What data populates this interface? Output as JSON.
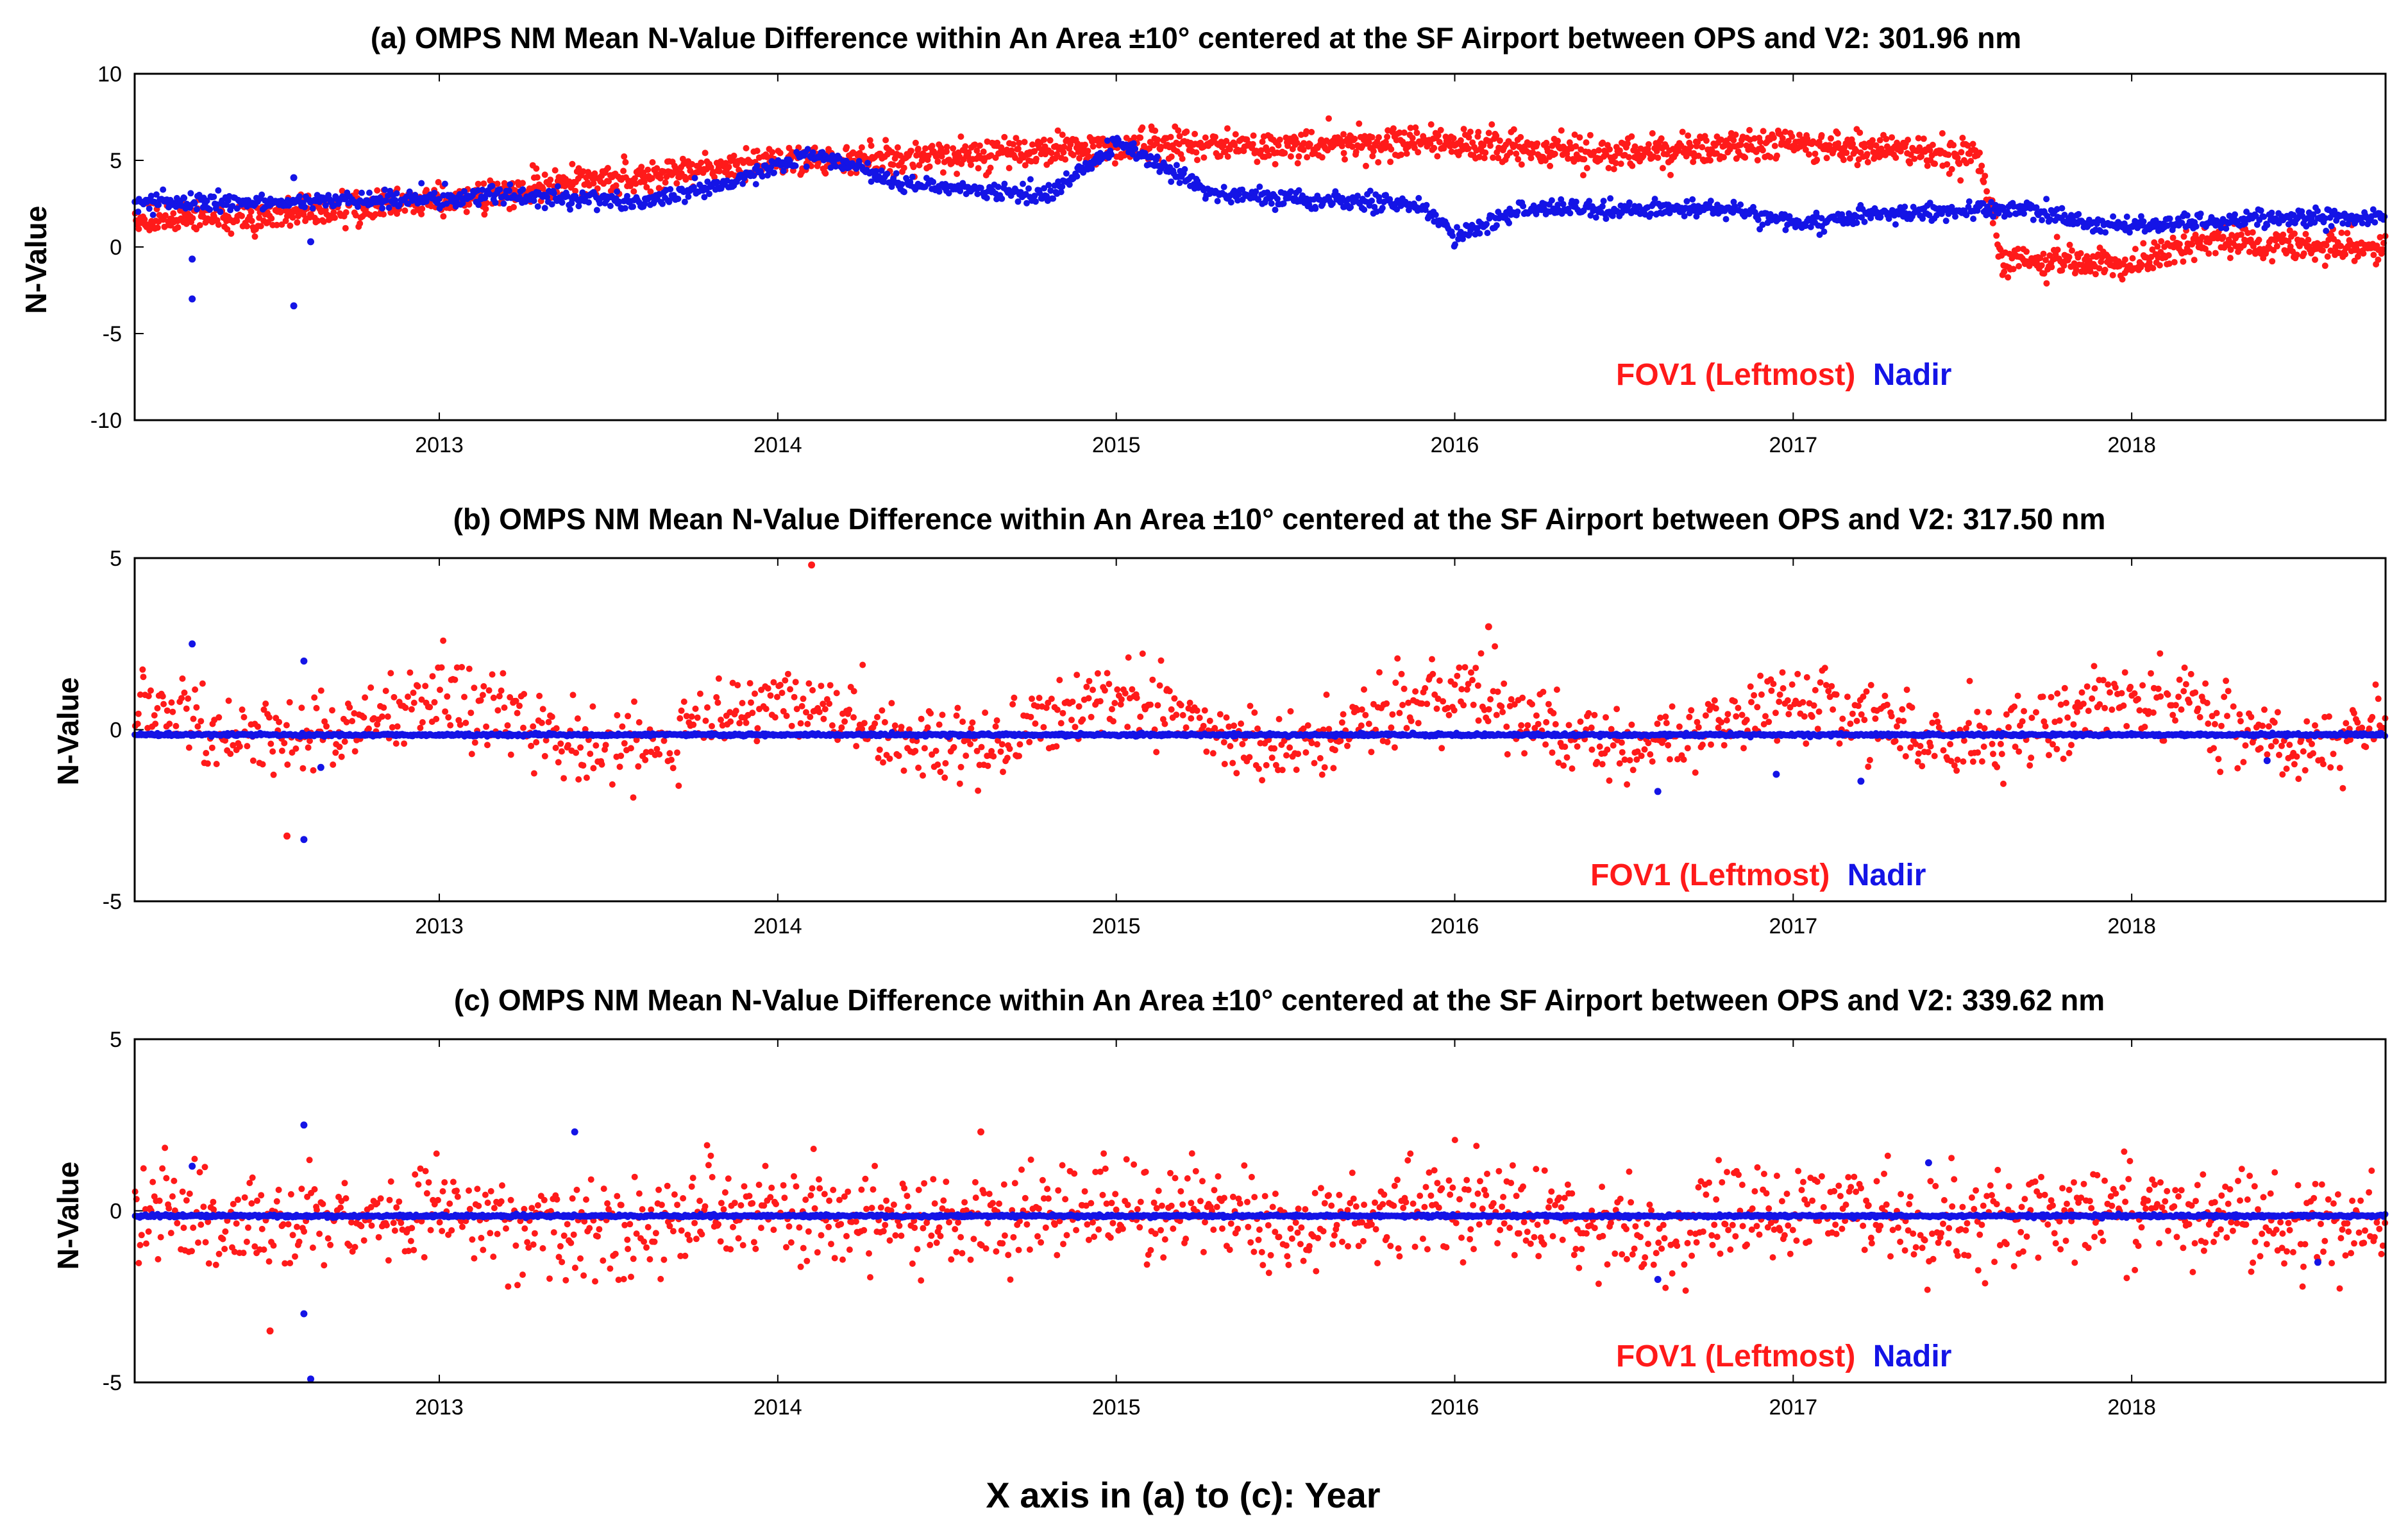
{
  "xaxis_label": "X axis in (a) to (c): Year",
  "colors": {
    "fov1": "#ff1a1a",
    "nadir": "#1414e6",
    "axis": "#000000"
  },
  "chart_data": [
    {
      "type": "scatter",
      "title": "(a) OMPS NM Mean N-Value Difference within An Area ±10° centered at the SF Airport between OPS and V2: 301.96 nm",
      "ylabel": "N-Value",
      "xlim": [
        2012.1,
        2018.75
      ],
      "ylim": [
        -10,
        10
      ],
      "yticks": [
        10,
        5,
        0,
        -5,
        -10
      ],
      "xticks": [
        2013,
        2014,
        2015,
        2016,
        2017,
        2018
      ],
      "legend": {
        "fov1": "FOV1 (Leftmost)",
        "nadir": "Nadir",
        "position": "bottom-right"
      },
      "series": [
        {
          "name": "FOV1 (Leftmost)",
          "color": "#ff1a1a",
          "noise": 0.45,
          "points_per_year": 330,
          "trend": [
            [
              2012.1,
              1.6
            ],
            [
              2012.5,
              1.8
            ],
            [
              2012.9,
              2.5
            ],
            [
              2013.5,
              3.8
            ],
            [
              2014.0,
              5.0
            ],
            [
              2014.5,
              5.2
            ],
            [
              2015.0,
              5.8
            ],
            [
              2015.5,
              5.8
            ],
            [
              2016.0,
              6.0
            ],
            [
              2016.5,
              5.4
            ],
            [
              2017.0,
              6.0
            ],
            [
              2017.55,
              5.2
            ],
            [
              2017.62,
              -0.8
            ],
            [
              2018.0,
              -1.0
            ],
            [
              2018.2,
              0.4
            ],
            [
              2018.75,
              -0.2
            ]
          ]
        },
        {
          "name": "Nadir",
          "color": "#1414e6",
          "noise": 0.25,
          "points_per_year": 260,
          "trend": [
            [
              2012.1,
              2.5
            ],
            [
              2012.8,
              2.7
            ],
            [
              2013.2,
              3.0
            ],
            [
              2013.6,
              2.6
            ],
            [
              2013.9,
              4.0
            ],
            [
              2014.1,
              5.4
            ],
            [
              2014.4,
              3.5
            ],
            [
              2014.8,
              3.0
            ],
            [
              2015.0,
              6.0
            ],
            [
              2015.15,
              4.5
            ],
            [
              2015.3,
              3.0
            ],
            [
              2015.9,
              2.4
            ],
            [
              2016.0,
              0.6
            ],
            [
              2016.2,
              2.2
            ],
            [
              2016.8,
              2.2
            ],
            [
              2017.0,
              1.4
            ],
            [
              2017.3,
              2.0
            ],
            [
              2017.7,
              2.2
            ],
            [
              2017.9,
              1.2
            ],
            [
              2018.3,
              1.6
            ],
            [
              2018.75,
              1.7
            ]
          ]
        }
      ],
      "outliers": [
        {
          "series": "Nadir",
          "x": 2012.27,
          "y": -3.0
        },
        {
          "series": "Nadir",
          "x": 2012.27,
          "y": -0.7
        },
        {
          "series": "Nadir",
          "x": 2012.57,
          "y": -3.4
        },
        {
          "series": "Nadir",
          "x": 2012.57,
          "y": 4.0
        },
        {
          "series": "Nadir",
          "x": 2012.62,
          "y": 0.3
        }
      ]
    },
    {
      "type": "scatter",
      "title": "(b) OMPS NM Mean N-Value Difference within An Area ±10° centered at the SF Airport between OPS and V2: 317.50 nm",
      "ylabel": "N-Value",
      "xlim": [
        2012.1,
        2018.75
      ],
      "ylim": [
        -5,
        5
      ],
      "yticks": [
        5,
        0,
        -5
      ],
      "xticks": [
        2013,
        2014,
        2015,
        2016,
        2017,
        2018
      ],
      "legend": {
        "fov1": "FOV1 (Leftmost)",
        "nadir": "Nadir",
        "position": "bottom-right"
      },
      "series": [
        {
          "name": "FOV1 (Leftmost)",
          "color": "#ff1a1a",
          "noise": 0.55,
          "points_per_year": 200,
          "seasonal_amplitude": 0.7,
          "mean": 0.2
        },
        {
          "name": "Nadir",
          "color": "#1414e6",
          "constant": -0.15,
          "points_per_year": 300
        }
      ],
      "outliers": [
        {
          "series": "FOV1 (Leftmost)",
          "x": 2014.1,
          "y": 4.8
        },
        {
          "series": "FOV1 (Leftmost)",
          "x": 2016.1,
          "y": 3.0
        },
        {
          "series": "FOV1 (Leftmost)",
          "x": 2012.55,
          "y": -3.1
        },
        {
          "series": "Nadir",
          "x": 2012.27,
          "y": 2.5
        },
        {
          "series": "Nadir",
          "x": 2012.6,
          "y": 2.0
        },
        {
          "series": "Nadir",
          "x": 2012.6,
          "y": -3.2
        },
        {
          "series": "Nadir",
          "x": 2012.65,
          "y": -1.1
        },
        {
          "series": "Nadir",
          "x": 2016.6,
          "y": -1.8
        },
        {
          "series": "Nadir",
          "x": 2016.95,
          "y": -1.3
        },
        {
          "series": "Nadir",
          "x": 2017.2,
          "y": -1.5
        },
        {
          "series": "Nadir",
          "x": 2018.4,
          "y": -0.9
        }
      ]
    },
    {
      "type": "scatter",
      "title": "(c) OMPS NM Mean N-Value Difference within An Area ±10° centered at the SF Airport between OPS and V2: 339.62 nm",
      "ylabel": "N-Value",
      "xlim": [
        2012.1,
        2018.75
      ],
      "ylim": [
        -5,
        5
      ],
      "yticks": [
        5,
        0,
        -5
      ],
      "xticks": [
        2013,
        2014,
        2015,
        2016,
        2017,
        2018
      ],
      "legend": {
        "fov1": "FOV1 (Leftmost)",
        "nadir": "Nadir",
        "position": "bottom-right"
      },
      "series": [
        {
          "name": "FOV1 (Leftmost)",
          "color": "#ff1a1a",
          "noise": 0.7,
          "points_per_year": 210,
          "seasonal_amplitude": 0.25,
          "mean": -0.2
        },
        {
          "name": "Nadir",
          "color": "#1414e6",
          "constant": -0.15,
          "points_per_year": 300
        }
      ],
      "outliers": [
        {
          "series": "FOV1 (Leftmost)",
          "x": 2012.5,
          "y": -3.5
        },
        {
          "series": "FOV1 (Leftmost)",
          "x": 2014.6,
          "y": 2.3
        },
        {
          "series": "Nadir",
          "x": 2012.27,
          "y": 1.3
        },
        {
          "series": "Nadir",
          "x": 2012.6,
          "y": 2.5
        },
        {
          "series": "Nadir",
          "x": 2012.6,
          "y": -3.0
        },
        {
          "series": "Nadir",
          "x": 2012.62,
          "y": -4.9
        },
        {
          "series": "Nadir",
          "x": 2013.4,
          "y": 2.3
        },
        {
          "series": "Nadir",
          "x": 2016.6,
          "y": -2.0
        },
        {
          "series": "Nadir",
          "x": 2017.4,
          "y": 1.4
        },
        {
          "series": "Nadir",
          "x": 2018.55,
          "y": -1.5
        }
      ]
    }
  ]
}
